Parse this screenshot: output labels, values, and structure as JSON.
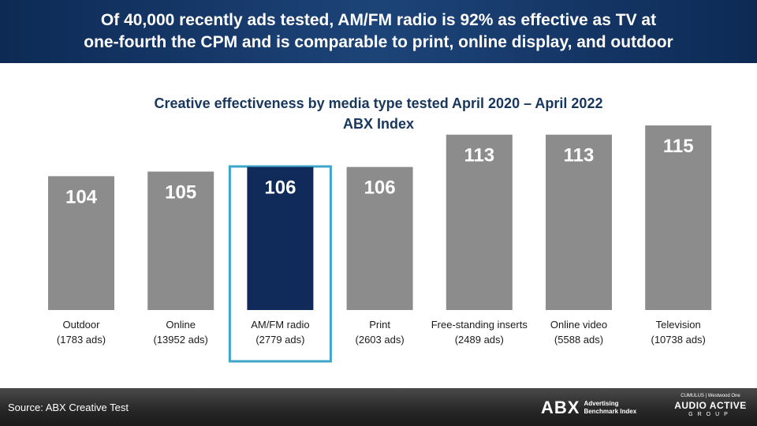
{
  "header": {
    "line1": "Of 40,000 recently ads tested, AM/FM radio is 92% as effective as TV at",
    "line2": "one-fourth the CPM and is comparable to print, online display, and outdoor"
  },
  "chart_data": {
    "type": "bar",
    "title": "Creative effectiveness  by media type tested April 2020 – April 2022",
    "subtitle": "ABX Index",
    "categories": [
      "Outdoor",
      "Online",
      "AM/FM radio",
      "Print",
      "Free-standing inserts",
      "Online video",
      "Television"
    ],
    "sublabels": [
      "(1783 ads)",
      "(13952 ads)",
      "(2779 ads)",
      "(2603 ads)",
      "(2489 ads)",
      "(5588 ads)",
      "(10738 ads)"
    ],
    "values": [
      104,
      105,
      106,
      106,
      113,
      113,
      115
    ],
    "highlight_index": 2,
    "colors": {
      "bar": "#8c8c8c",
      "highlight_bar": "#102a59",
      "highlight_box": "#3ea6c8",
      "value_text": "#ffffff",
      "label_text": "#1a1a1a"
    },
    "grid": false,
    "legend": "none"
  },
  "footer": {
    "source": "Source: ABX Creative Test",
    "abx_logo": {
      "mark": "ABX",
      "line1": "Advertising",
      "line2": "Benchmark Index"
    },
    "aag_logo": {
      "top": "CUMULUS | Westwood One",
      "main": "AUDIO ACTIVE",
      "group": "GROUP"
    }
  }
}
